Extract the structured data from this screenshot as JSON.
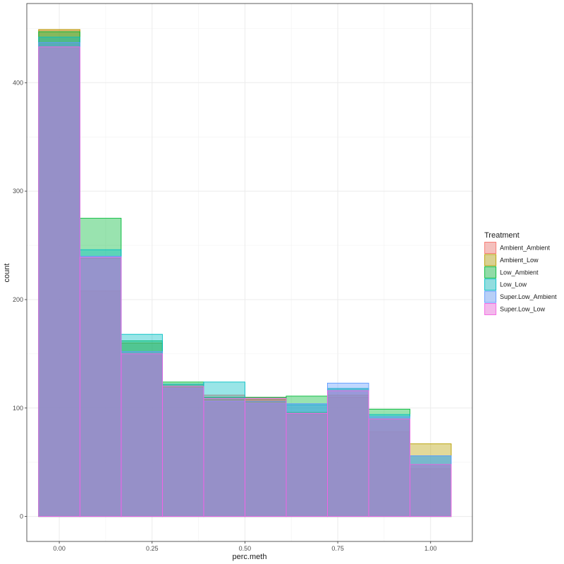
{
  "chart_data": {
    "type": "histogram",
    "title": "",
    "xlabel": "perc.meth",
    "ylabel": "count",
    "xlim": [
      -0.0875,
      1.1125
    ],
    "ylim": [
      -23,
      473
    ],
    "x_ticks": [
      {
        "value": 0.0,
        "label": "0.00"
      },
      {
        "value": 0.25,
        "label": "0.25"
      },
      {
        "value": 0.5,
        "label": "0.50"
      },
      {
        "value": 0.75,
        "label": "0.75"
      },
      {
        "value": 1.0,
        "label": "1.00"
      }
    ],
    "y_ticks": [
      {
        "value": 0,
        "label": "0"
      },
      {
        "value": 100,
        "label": "100"
      },
      {
        "value": 200,
        "label": "200"
      },
      {
        "value": 300,
        "label": "300"
      },
      {
        "value": 400,
        "label": "400"
      }
    ],
    "grid": true,
    "position": "identity",
    "bin_edges": [
      -0.0556,
      0.0556,
      0.1667,
      0.2778,
      0.3889,
      0.5,
      0.6111,
      0.7222,
      0.8333,
      0.9444,
      1.0556
    ],
    "legend": {
      "title": "Treatment",
      "placement": "right"
    },
    "series": [
      {
        "name": "Ambient_Ambient",
        "fill": "#F8766D",
        "stroke": "#F8766D",
        "values": [
          449,
          208,
          150,
          122,
          112,
          110,
          94,
          110,
          78,
          44
        ]
      },
      {
        "name": "Ambient_Low",
        "fill": "#B79F00",
        "stroke": "#B79F00",
        "values": [
          449,
          238,
          160,
          120,
          108,
          108,
          96,
          112,
          90,
          67
        ]
      },
      {
        "name": "Low_Ambient",
        "fill": "#00BA38",
        "stroke": "#00BA38",
        "values": [
          447,
          275,
          162,
          124,
          110,
          110,
          111,
          118,
          99,
          48
        ]
      },
      {
        "name": "Low_Low",
        "fill": "#00BFC4",
        "stroke": "#00BFC4",
        "values": [
          442,
          246,
          168,
          122,
          124,
          106,
          103,
          118,
          94,
          56
        ]
      },
      {
        "name": "Super.Low_Ambient",
        "fill": "#619CFF",
        "stroke": "#619CFF",
        "values": [
          437,
          240,
          152,
          118,
          106,
          104,
          104,
          123,
          92,
          56
        ]
      },
      {
        "name": "Super.Low_Low",
        "fill": "#F564E3",
        "stroke": "#F564E3",
        "values": [
          433,
          239,
          150,
          120,
          109,
          109,
          95,
          116,
          90,
          48
        ]
      }
    ]
  }
}
